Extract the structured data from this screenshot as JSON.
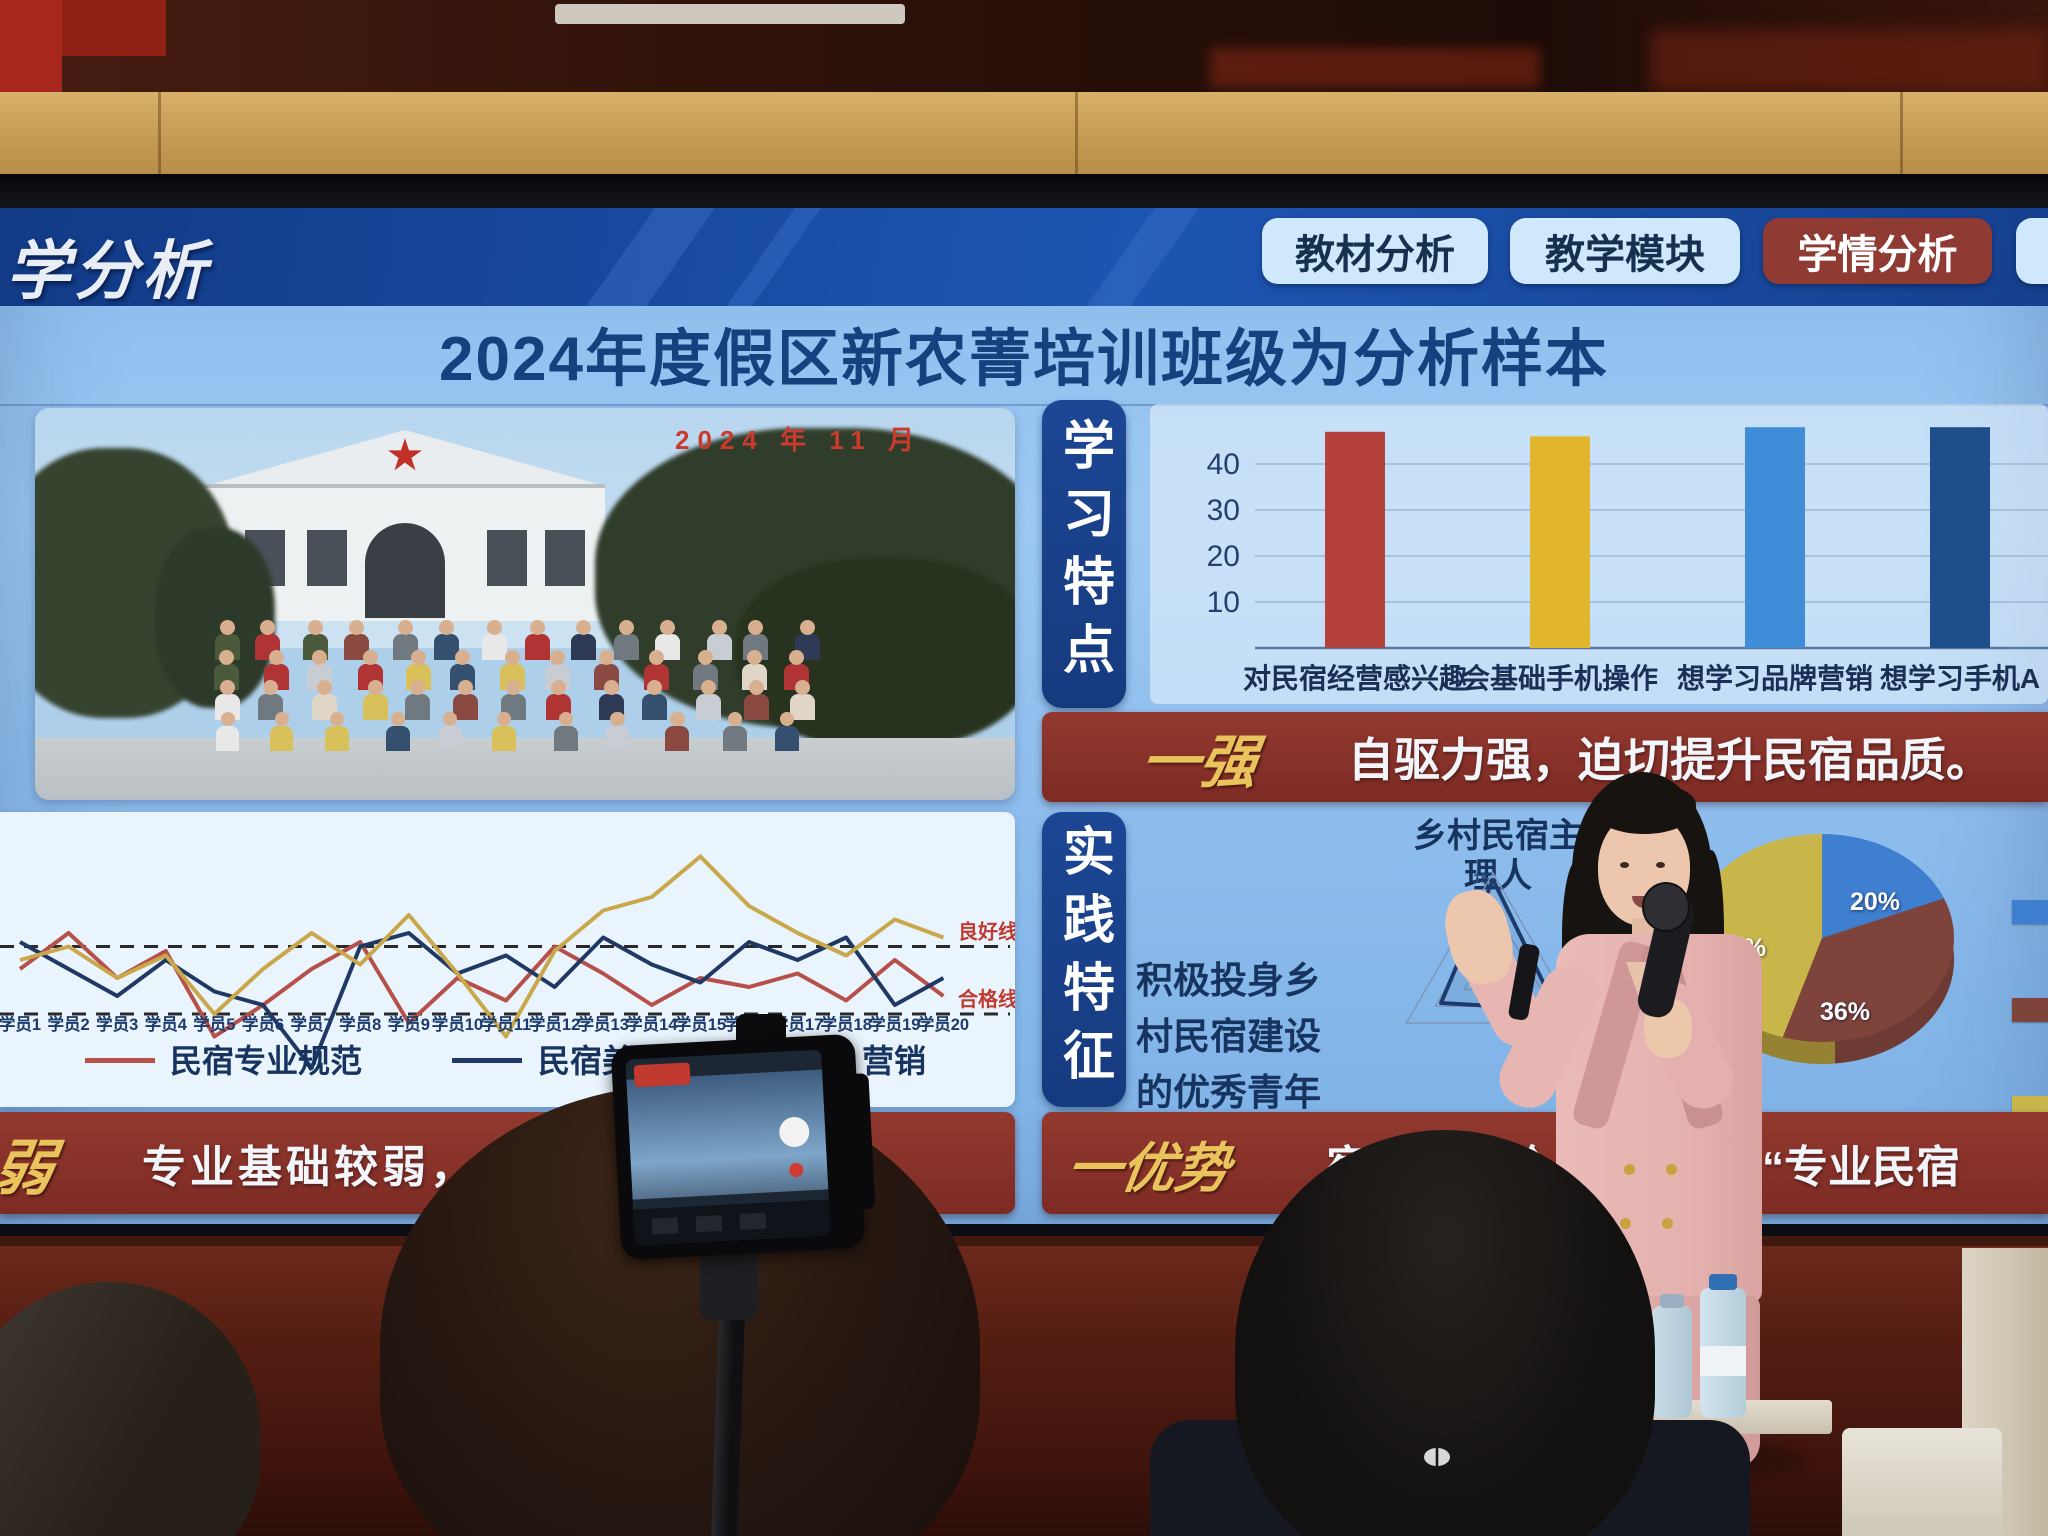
{
  "slide": {
    "header": {
      "title_partial": "学分析",
      "tabs": [
        {
          "label": "教材分析",
          "active": false
        },
        {
          "label": "教学模块",
          "active": false
        },
        {
          "label": "学情分析",
          "active": true
        },
        {
          "label": "",
          "active": false,
          "partial": true
        }
      ]
    },
    "main_title": "2024年度假区新农菁培训班级为分析样本",
    "photo_caption": "2024 年 11 月",
    "learning_pill": "学习特点",
    "practice_pill": "实践特征",
    "strength_strip": {
      "label": "一强",
      "text": "自驱力强，迫切提升民宿品质。"
    },
    "weak_strip": {
      "label": "弱",
      "text": "专业基础较弱，专业知识一知半解。"
    },
    "advantage_strip": {
      "label": "一优势",
      "text_left": "宿经营经验",
      "text_right": "蜕变“专业民宿"
    },
    "practice": {
      "radar_title_line1": "乡村民宿主",
      "radar_title_line2": "理人",
      "side_text_line1": "积极投身乡",
      "side_text_line2": "村民宿建设",
      "side_text_line3": "的优秀青年"
    }
  },
  "colors": {
    "slide_blue": "#8dbdee",
    "header_blue": "#1d55b2",
    "strip_red": "#93392f",
    "active_tab_red": "#8f3a32",
    "label_yellow": "#e9c35c",
    "bar_red": "#b5413c",
    "bar_yellow": "#e2b62c",
    "bar_lightblue": "#3f8dd8",
    "bar_darkblue": "#1f4e8c",
    "pie_blue": "#3f7fd0",
    "pie_maroon": "#7e443c",
    "pie_yellow": "#c9b64b"
  },
  "chart_data": [
    {
      "type": "bar",
      "title": "",
      "categories": [
        "对民宿经营感兴趣",
        "会基础手机操作",
        "想学习品牌营销",
        "想学习手机A"
      ],
      "values": [
        47,
        46,
        48,
        48
      ],
      "colors": [
        "#b5413c",
        "#e2b62c",
        "#3f8dd8",
        "#1f4e8c"
      ],
      "yticks": [
        10,
        20,
        30,
        40
      ],
      "ylim": [
        0,
        50
      ],
      "grid": true,
      "legend_position": "none"
    },
    {
      "type": "line",
      "title": "",
      "x": [
        "学员1",
        "学员2",
        "学员3",
        "学员4",
        "学员5",
        "学员6",
        "学员7",
        "学员8",
        "学员9",
        "学员10",
        "学员11",
        "学员12",
        "学员13",
        "学员14",
        "学员15",
        "学员16",
        "学员17",
        "学员18",
        "学员19",
        "学员20"
      ],
      "series": [
        {
          "name": "民宿专业规范",
          "color": "#b5504a",
          "values": [
            70,
            78,
            68,
            74,
            55,
            62,
            70,
            76,
            58,
            68,
            63,
            75,
            69,
            62,
            68,
            66,
            69,
            63,
            72,
            64
          ]
        },
        {
          "name": "民宿美学素养",
          "color": "#1f3864",
          "values": [
            76,
            70,
            64,
            72,
            65,
            62,
            48,
            75,
            78,
            69,
            73,
            66,
            77,
            71,
            67,
            76,
            72,
            77,
            62,
            68
          ]
        },
        {
          "name": "营销",
          "color": "#c8a84b",
          "values": [
            72,
            75,
            68,
            73,
            60,
            70,
            78,
            71,
            82,
            69,
            55,
            74,
            83,
            86,
            95,
            84,
            78,
            73,
            81,
            77
          ]
        }
      ],
      "reference_lines": [
        {
          "label": "良好线",
          "value": 75
        },
        {
          "label": "合格线",
          "value": 60
        }
      ],
      "ylim": [
        40,
        100
      ],
      "grid": false,
      "legend_position": "bottom"
    },
    {
      "type": "radar",
      "title": "乡村民宿主理人",
      "rings": [
        0,
        5,
        10,
        15
      ],
      "max": 15,
      "axes": 3,
      "series": [
        {
          "name": "",
          "color": "#1e3b6e",
          "values": [
            14,
            9,
            11
          ]
        }
      ]
    },
    {
      "type": "pie",
      "title": "",
      "slices": [
        {
          "label": "20%",
          "value": 20,
          "color": "#3f7fd0"
        },
        {
          "label": "36%",
          "value": 36,
          "color": "#7e443c"
        },
        {
          "label": "44%",
          "value": 44,
          "color": "#c9b64b"
        }
      ],
      "legend_position": "right",
      "style": "3d"
    }
  ]
}
